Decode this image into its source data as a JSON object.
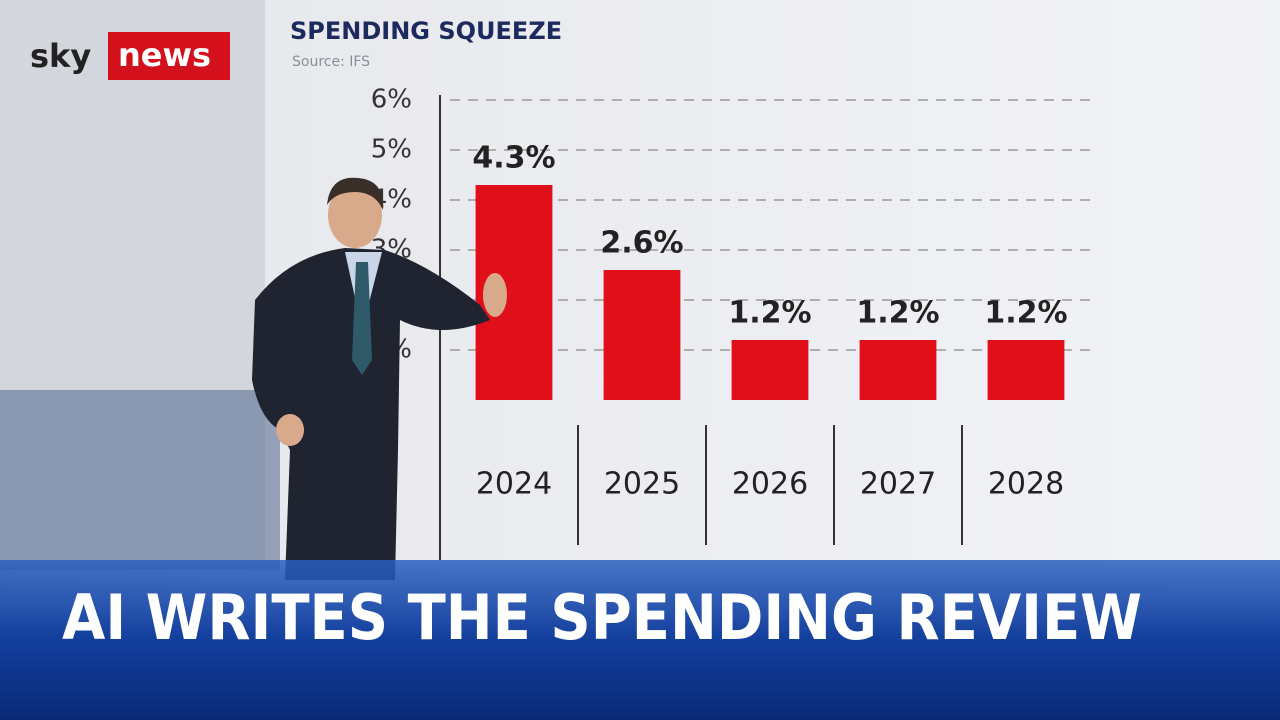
{
  "logo": {
    "sky": "sky",
    "news": "news"
  },
  "headline": "AI WRITES THE SPENDING REVIEW",
  "chart_data": {
    "type": "bar",
    "title": "SPENDING SQUEEZE",
    "subtitle": "Source: IFS",
    "categories": [
      "2024",
      "2025",
      "2026",
      "2027",
      "2028"
    ],
    "values": [
      4.3,
      2.6,
      1.2,
      1.2,
      1.2
    ],
    "value_labels": [
      "4.3%",
      "2.6%",
      "1.2%",
      "1.2%",
      "1.2%"
    ],
    "color": "#e0101a",
    "ylim": [
      0,
      6
    ],
    "yticks": [
      {
        "value": 1,
        "label": "%"
      },
      {
        "value": 2,
        "label": "%"
      },
      {
        "value": 3,
        "label": "3%"
      },
      {
        "value": 4,
        "label": "4%"
      },
      {
        "value": 5,
        "label": "5%"
      },
      {
        "value": 6,
        "label": "6%"
      }
    ],
    "grid": true
  }
}
